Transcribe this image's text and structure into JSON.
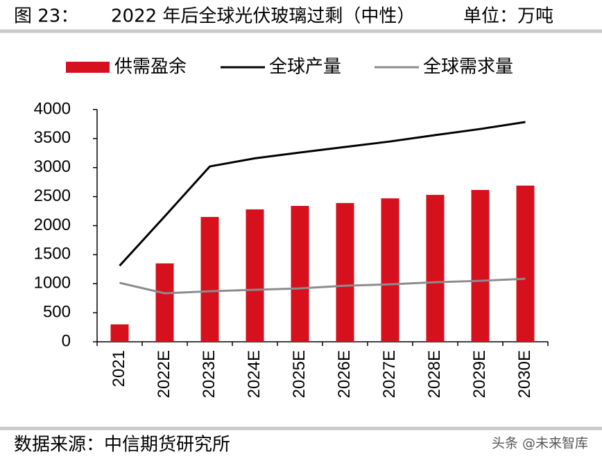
{
  "chart_data": {
    "type": "bar_line",
    "figure_label": "图 23：",
    "title": "2022 年后全球光伏玻璃过剩（中性）",
    "unit": "单位：万吨",
    "categories": [
      "2021",
      "2022E",
      "2023E",
      "2024E",
      "2025E",
      "2026E",
      "2027E",
      "2028E",
      "2029E",
      "2030E"
    ],
    "series": [
      {
        "name": "供需盈余",
        "kind": "bar",
        "color": "#d7101d",
        "values": [
          300,
          1350,
          2150,
          2280,
          2340,
          2390,
          2470,
          2530,
          2615,
          2690
        ]
      },
      {
        "name": "全球产量",
        "kind": "line",
        "color": "#000000",
        "values": [
          1310,
          2160,
          3020,
          3160,
          3260,
          3355,
          3450,
          3560,
          3665,
          3785
        ]
      },
      {
        "name": "全球需求量",
        "kind": "line",
        "color": "#8c8c8c",
        "values": [
          1015,
          835,
          870,
          895,
          920,
          965,
          990,
          1025,
          1050,
          1085
        ]
      }
    ],
    "ylim": [
      0,
      4000
    ],
    "yticks": [
      0,
      500,
      1000,
      1500,
      2000,
      2500,
      3000,
      3500,
      4000
    ],
    "legend": "top",
    "source": "数据来源：中信期货研究所",
    "watermark": "头条 @未来智库"
  }
}
